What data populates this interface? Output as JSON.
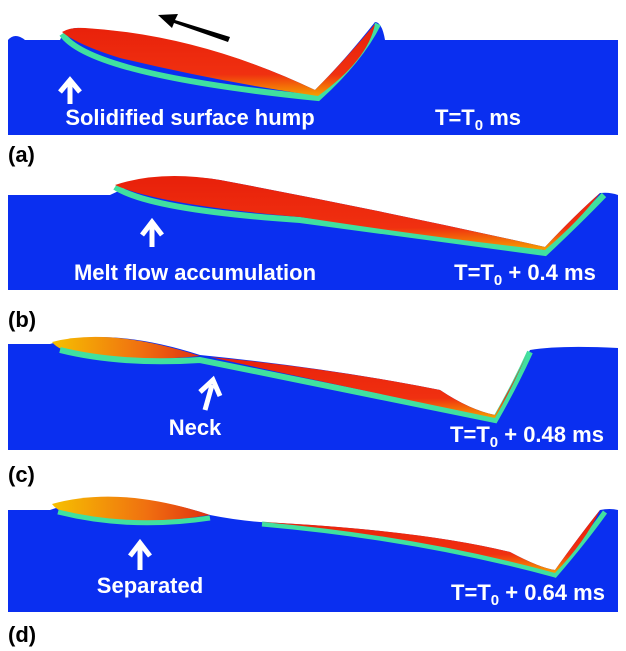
{
  "panels": [
    {
      "label": "(a)",
      "annotation": "Solidified surface hump",
      "time": {
        "base": "T=T",
        "sub": "0",
        "rest": " ms"
      }
    },
    {
      "label": "(b)",
      "annotation": "Melt flow accumulation",
      "time": {
        "base": "T=T",
        "sub": "0",
        "rest": " + 0.4 ms"
      }
    },
    {
      "label": "(c)",
      "annotation": "Neck",
      "time": {
        "base": "T=T",
        "sub": "0",
        "rest": " + 0.48 ms"
      }
    },
    {
      "label": "(d)",
      "annotation": "Separated",
      "time": {
        "base": "T=T",
        "sub": "0",
        "rest": " + 0.64 ms"
      }
    }
  ]
}
